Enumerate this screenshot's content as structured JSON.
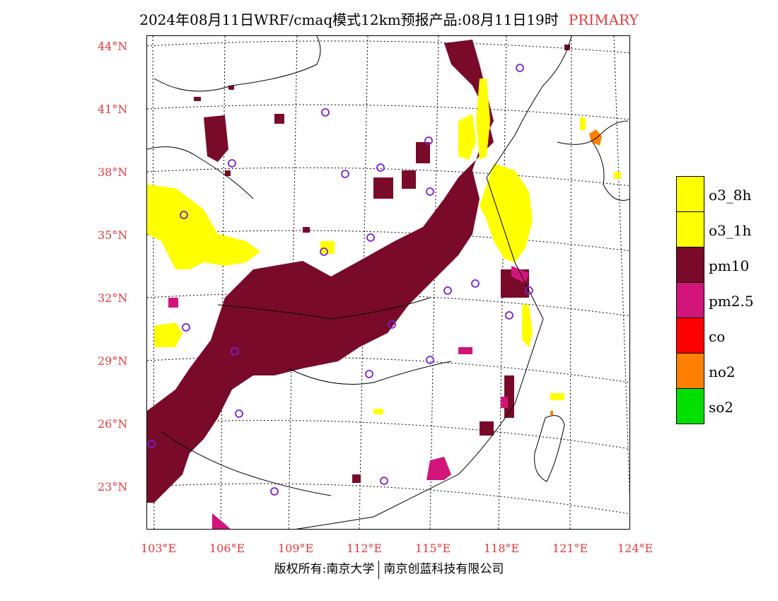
{
  "title": {
    "main": "2024年08月11日WRF/cmaq模式12km预报产品:08月11日19时",
    "tag": "PRIMARY"
  },
  "axes": {
    "lat_labels": [
      "44°N",
      "41°N",
      "38°N",
      "35°N",
      "32°N",
      "29°N",
      "26°N",
      "23°N"
    ],
    "lon_labels": [
      "103°E",
      "106°E",
      "109°E",
      "112°E",
      "115°E",
      "118°E",
      "121°E",
      "124°E"
    ]
  },
  "legend": [
    {
      "label": "o3_8h",
      "color": "#ffff00"
    },
    {
      "label": "o3_1h",
      "color": "#ffff00"
    },
    {
      "label": "pm10",
      "color": "#7a0a2a"
    },
    {
      "label": "pm2.5",
      "color": "#d1157a"
    },
    {
      "label": "co",
      "color": "#ff0000"
    },
    {
      "label": "no2",
      "color": "#ff8000"
    },
    {
      "label": "so2",
      "color": "#00e000"
    }
  ],
  "footer": {
    "left": "版权所有:南京大学",
    "right": "南京创蓝科技有限公司"
  }
}
